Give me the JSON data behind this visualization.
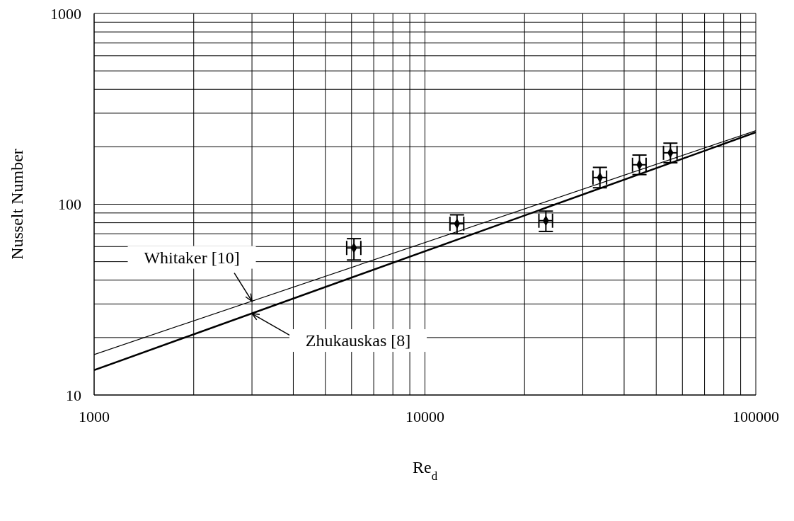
{
  "chart_data": {
    "type": "scatter",
    "xlabel": "Re$_{d}$",
    "ylabel": "Nusselt Number",
    "log": "xy",
    "grid": true,
    "legend": false,
    "xlim": [
      1000,
      100000
    ],
    "ylim": [
      10,
      1000
    ],
    "xticks": [
      1000,
      {
        "value": 2000,
        "label": null
      },
      {
        "value": 3000,
        "label": null
      },
      {
        "value": 4000,
        "label": null
      },
      {
        "value": 5000,
        "label": null
      },
      {
        "value": 6000,
        "label": null
      },
      {
        "value": 7000,
        "label": null
      },
      {
        "value": 8000,
        "label": null
      },
      {
        "value": 9000,
        "label": null
      },
      10000,
      {
        "value": 20000,
        "label": null
      },
      {
        "value": 30000,
        "label": null
      },
      {
        "value": 40000,
        "label": null
      },
      {
        "value": 50000,
        "label": null
      },
      {
        "value": 60000,
        "label": null
      },
      {
        "value": 70000,
        "label": null
      },
      {
        "value": 80000,
        "label": null
      },
      {
        "value": 90000,
        "label": null
      },
      100000
    ],
    "yticks": [
      10,
      {
        "value": 20,
        "label": null
      },
      {
        "value": 30,
        "label": null
      },
      {
        "value": 40,
        "label": null
      },
      {
        "value": 50,
        "label": null
      },
      {
        "value": 60,
        "label": null
      },
      {
        "value": 70,
        "label": null
      },
      {
        "value": 80,
        "label": null
      },
      {
        "value": 90,
        "label": null
      },
      100,
      {
        "value": 200,
        "label": null
      },
      {
        "value": 300,
        "label": null
      },
      {
        "value": 400,
        "label": null
      },
      {
        "value": 500,
        "label": null
      },
      {
        "value": 600,
        "label": null
      },
      {
        "value": 700,
        "label": null
      },
      {
        "value": 800,
        "label": null
      },
      {
        "value": 900,
        "label": null
      },
      1000
    ],
    "annotations": [
      {
        "text": "Whitaker [10]",
        "x": 3000,
        "y": 31
      },
      {
        "text": "Zhukauskas [8]",
        "x": 3000,
        "y": 26.7
      }
    ],
    "series": [
      {
        "marker": "diamond",
        "color": "#000000",
        "x": [
          6100,
          12500,
          23200,
          33800,
          44500,
          55200
        ],
        "values": [
          59,
          79,
          82,
          138,
          161,
          186
        ],
        "errors": [
          [
            51,
            66
          ],
          [
            70,
            88
          ],
          [
            72,
            92
          ],
          [
            122,
            156
          ],
          [
            143,
            181
          ],
          [
            165,
            209
          ]
        ],
        "xerrors": [
          [
            5800,
            6400
          ],
          [
            11900,
            13100
          ],
          [
            22100,
            24300
          ],
          [
            32200,
            35400
          ],
          [
            42400,
            46600
          ],
          [
            52600,
            57800
          ]
        ]
      },
      {
        "type": "line",
        "color": "#000000",
        "line_style": "solid",
        "x": [
          1000,
          100000
        ],
        "values": [
          16.3,
          243
        ]
      },
      {
        "type": "line",
        "color": "#000000",
        "line_style": "solid",
        "x": [
          1000,
          100000
        ],
        "values": [
          13.5,
          238
        ]
      }
    ]
  }
}
